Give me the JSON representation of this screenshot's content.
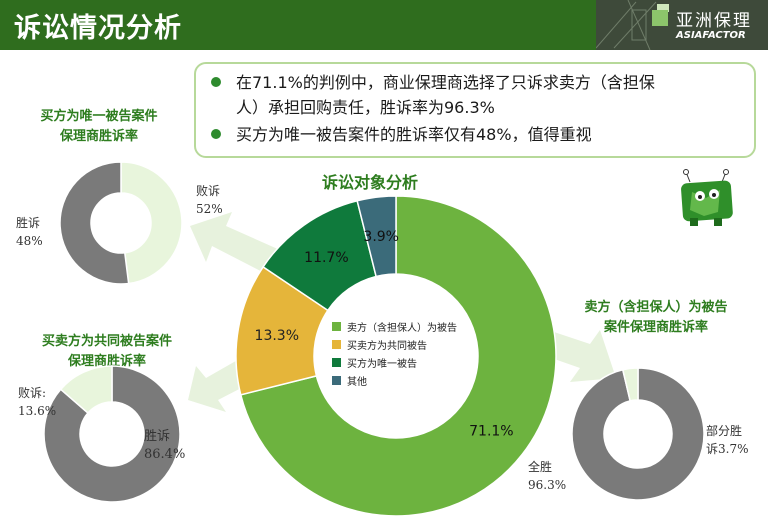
{
  "header": {
    "title": "诉讼情况分析"
  },
  "logo": {
    "cn": "亚洲保理",
    "en": "ASIAFACTOR"
  },
  "callout": {
    "bullets": [
      {
        "line1": "在71.1%的判例中，商业保理商选择了只诉求卖方（含担保",
        "line2": "人）承担回购责任，胜诉率为96.3%"
      },
      {
        "line1": "买方为唯一被告案件的胜诉率仅有48%，值得重视"
      }
    ]
  },
  "chart_data": [
    {
      "type": "pie",
      "title": "诉讼对象分析",
      "categories": [
        "卖方（含担保人）为被告",
        "买卖方为共同被告",
        "买方为唯一被告",
        "其他"
      ],
      "values": [
        71.1,
        13.3,
        11.7,
        3.9
      ],
      "labels": [
        "71.1%",
        "13.3%",
        "11.7%",
        "3.9%"
      ],
      "colors": [
        "#6db33f",
        "#e5b53a",
        "#0f7a3c",
        "#3b6b7a"
      ],
      "legend": "center"
    },
    {
      "type": "pie",
      "title_line1": "买方为唯一被告案件",
      "title_line2": "保理商胜诉率",
      "categories": [
        "胜诉",
        "败诉"
      ],
      "values": [
        48,
        52
      ],
      "labels": {
        "win": "胜诉",
        "win_pct": "48%",
        "lose": "败诉",
        "lose_pct": "52%"
      },
      "colors": [
        "#e8f5dc",
        "#7a7a7a"
      ]
    },
    {
      "type": "pie",
      "title_line1": "买卖方为共同被告案件",
      "title_line2": "保理商胜诉率",
      "categories": [
        "胜诉",
        "败诉"
      ],
      "values": [
        86.4,
        13.6
      ],
      "labels": {
        "win": "胜诉",
        "win_pct": "86.4%",
        "lose": "败诉:",
        "lose_pct": "13.6%"
      },
      "colors": [
        "#7a7a7a",
        "#e8f5dc"
      ]
    },
    {
      "type": "pie",
      "title_line1": "卖方（含担保人）为被告",
      "title_line2": "案件保理商胜诉率",
      "categories": [
        "全胜",
        "部分胜诉"
      ],
      "values": [
        96.3,
        3.7
      ],
      "labels": {
        "win": "全胜",
        "win_pct": "96.3%",
        "part1": "部分胜",
        "part2": "诉3.7%"
      },
      "colors": [
        "#7a7a7a",
        "#e8f5dc"
      ]
    }
  ]
}
